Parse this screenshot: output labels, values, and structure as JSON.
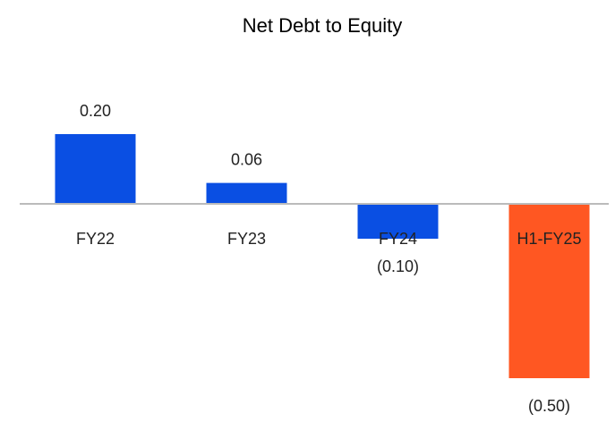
{
  "chart_data": {
    "type": "bar",
    "title": "Net Debt to Equity",
    "categories": [
      "FY22",
      "FY23",
      "FY24",
      "H1-FY25"
    ],
    "values": [
      0.2,
      0.06,
      -0.1,
      -0.5
    ],
    "value_labels": [
      "0.20",
      "0.06",
      "(0.10)",
      "(0.50)"
    ],
    "colors": [
      "#0a4fe3",
      "#0a4fe3",
      "#0a4fe3",
      "#ff5722"
    ],
    "ylim": [
      -0.6,
      0.4
    ]
  }
}
